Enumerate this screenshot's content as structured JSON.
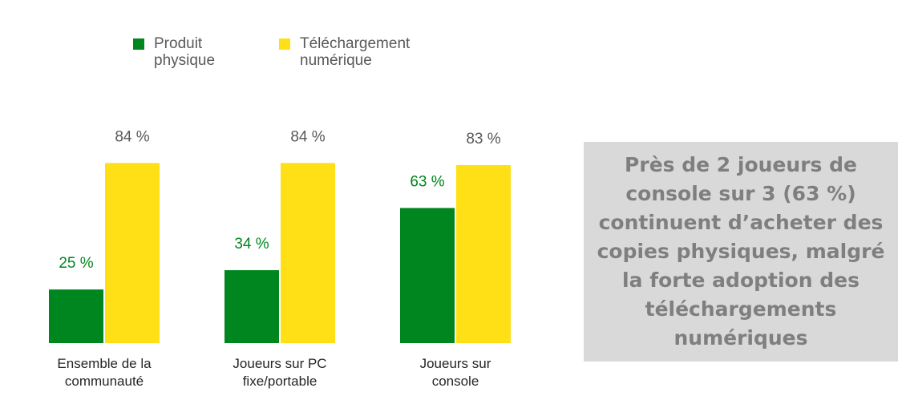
{
  "chart_data": {
    "type": "bar",
    "categories": [
      "Ensemble de la communauté",
      "Joueurs sur PC fixe/portable",
      "Joueurs sur console"
    ],
    "category_lines": [
      [
        "Ensemble de la",
        "communauté"
      ],
      [
        "Joueurs sur PC",
        "fixe/portable"
      ],
      [
        "Joueurs sur",
        "console"
      ]
    ],
    "series": [
      {
        "name": "Produit physique",
        "name_lines": [
          "Produit",
          "physique"
        ],
        "color": "#00861e",
        "values": [
          25,
          34,
          63
        ],
        "labels": [
          "25 %",
          "34 %",
          "63 %"
        ]
      },
      {
        "name": "Téléchargement numérique",
        "name_lines": [
          "Téléchargement",
          "numérique"
        ],
        "color": "#ffdf16",
        "values": [
          84,
          84,
          83
        ],
        "labels": [
          "84 %",
          "84 %",
          "83 %"
        ]
      }
    ],
    "ylim": [
      0,
      100
    ],
    "grid": false,
    "legend": "top"
  },
  "callout": {
    "text": "Près de 2 joueurs de console sur 3 (63 %) continuent d’acheter des copies physiques, malgré la forte adoption des téléchargements numériques"
  }
}
